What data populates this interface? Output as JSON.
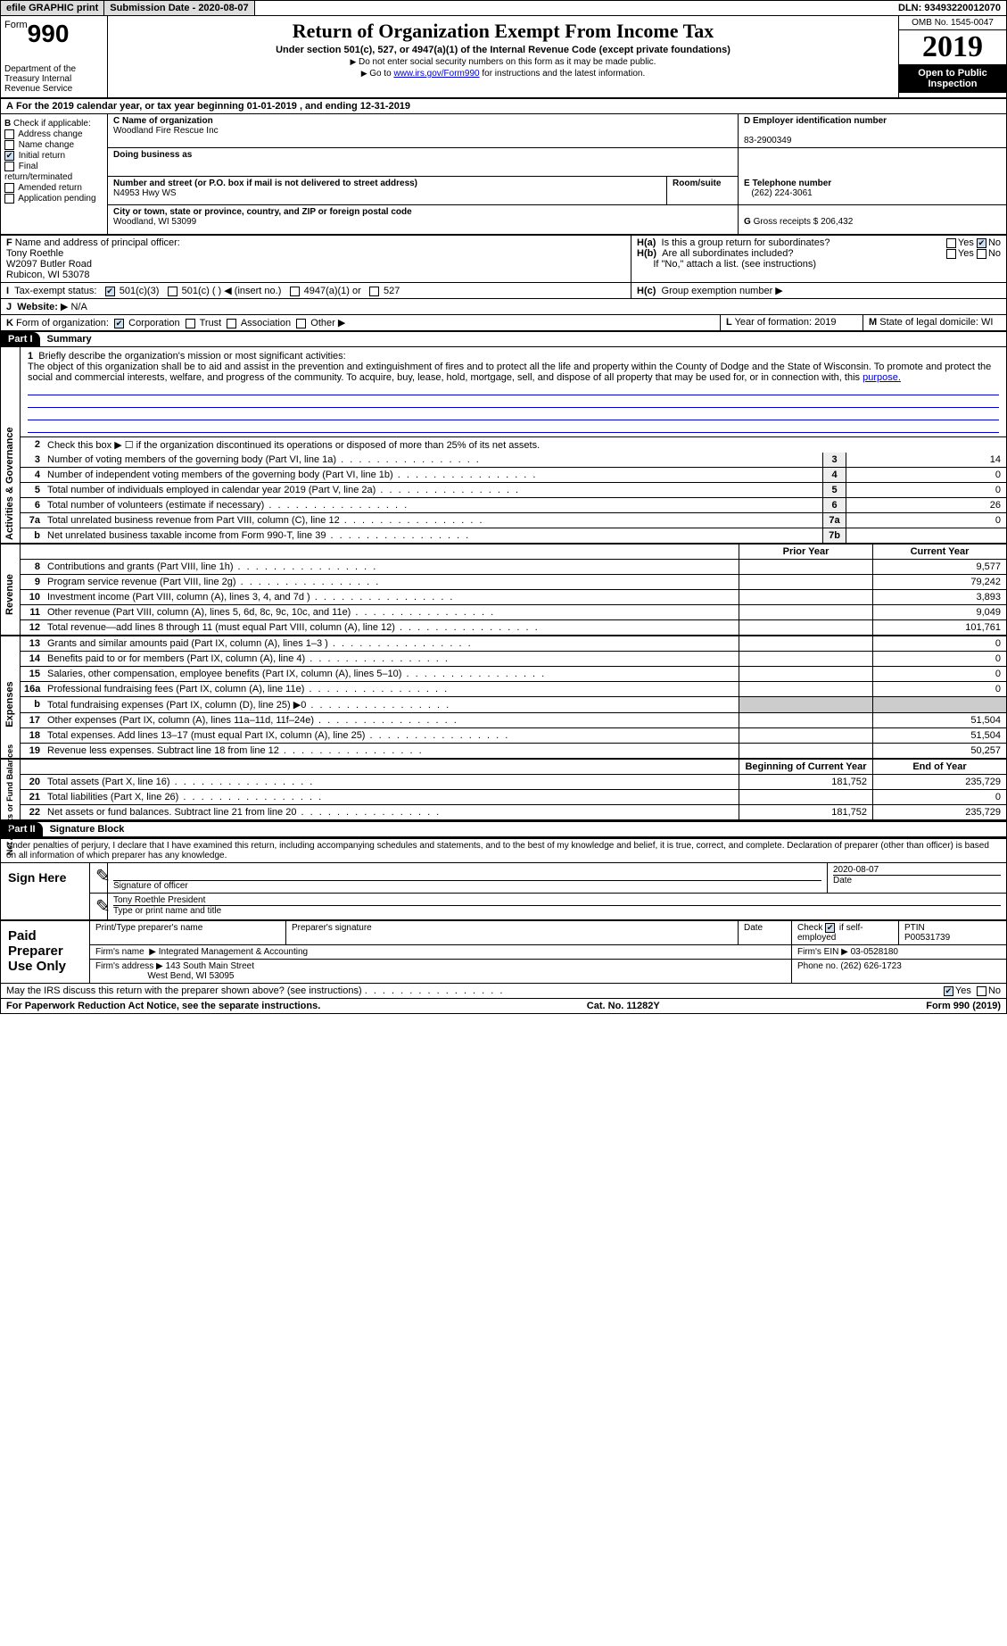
{
  "topbar": {
    "efile": "efile GRAPHIC print",
    "submission": "Submission Date - 2020-08-07",
    "dln": "DLN: 93493220012070"
  },
  "header": {
    "form_word": "Form",
    "form_num": "990",
    "dept": "Department of the Treasury\nInternal Revenue Service",
    "title": "Return of Organization Exempt From Income Tax",
    "sub": "Under section 501(c), 527, or 4947(a)(1) of the Internal Revenue Code (except private foundations)",
    "note1": "Do not enter social security numbers on this form as it may be made public.",
    "note2_pre": "Go to ",
    "note2_link": "www.irs.gov/Form990",
    "note2_post": " for instructions and the latest information.",
    "omb": "OMB No. 1545-0047",
    "year": "2019",
    "inspect": "Open to Public Inspection"
  },
  "A": "For the 2019 calendar year, or tax year beginning 01-01-2019    , and ending 12-31-2019",
  "B": {
    "label": "Check if applicable:",
    "opts": [
      "Address change",
      "Name change",
      "Initial return",
      "Final return/terminated",
      "Amended return",
      "Application pending"
    ],
    "checked_idx": 2
  },
  "C": {
    "name_label": "Name of organization",
    "name": "Woodland Fire Rescue Inc",
    "dba_label": "Doing business as",
    "dba": "",
    "street_label": "Number and street (or P.O. box if mail is not delivered to street address)",
    "street": "N4953 Hwy WS",
    "room_label": "Room/suite",
    "city_label": "City or town, state or province, country, and ZIP or foreign postal code",
    "city": "Woodland, WI  53099"
  },
  "D": {
    "label": "Employer identification number",
    "val": "83-2900349"
  },
  "E": {
    "label": "Telephone number",
    "val": "(262) 224-3061"
  },
  "G": {
    "label": "Gross receipts $",
    "val": "206,432"
  },
  "F": {
    "label": "Name and address of principal officer:",
    "name": "Tony Roethle",
    "addr1": "W2097 Butler Road",
    "addr2": "Rubicon, WI  53078"
  },
  "H": {
    "a": "Is this a group return for subordinates?",
    "b": "Are all subordinates included?",
    "b_note": "If \"No,\" attach a list. (see instructions)",
    "c": "Group exemption number"
  },
  "I": {
    "label": "Tax-exempt status:",
    "opts": [
      "501(c)(3)",
      "501(c) (   ) ◀ (insert no.)",
      "4947(a)(1) or",
      "527"
    ]
  },
  "J": {
    "label": "Website:",
    "val": "N/A"
  },
  "K": {
    "label": "Form of organization:",
    "opts": [
      "Corporation",
      "Trust",
      "Association",
      "Other"
    ]
  },
  "L": {
    "label": "Year of formation:",
    "val": "2019"
  },
  "M": {
    "label": "State of legal domicile:",
    "val": "WI"
  },
  "part1": {
    "head": "Part I",
    "title": "Summary",
    "l1_label": "Briefly describe the organization's mission or most significant activities:",
    "l1_text": "The object of this organization shall be to aid and assist in the prevention and extinguishment of fires and to protect all the life and property within the County of Dodge and the State of Wisconsin. To promote and protect the social and commercial interests, welfare, and progress of the community. To acquire, buy, lease, hold, mortgage, sell, and dispose of all property that may be used for, or in connection with, this ",
    "l1_purpose": "purpose.",
    "l2": "Check this box ▶ ☐  if the organization discontinued its operations or disposed of more than 25% of its net assets.",
    "rows_ag": [
      {
        "n": "3",
        "t": "Number of voting members of the governing body (Part VI, line 1a)",
        "b": "3",
        "v": "14"
      },
      {
        "n": "4",
        "t": "Number of independent voting members of the governing body (Part VI, line 1b)",
        "b": "4",
        "v": "0"
      },
      {
        "n": "5",
        "t": "Total number of individuals employed in calendar year 2019 (Part V, line 2a)",
        "b": "5",
        "v": "0"
      },
      {
        "n": "6",
        "t": "Total number of volunteers (estimate if necessary)",
        "b": "6",
        "v": "26"
      },
      {
        "n": "7a",
        "t": "Total unrelated business revenue from Part VIII, column (C), line 12",
        "b": "7a",
        "v": "0"
      },
      {
        "n": "b",
        "t": "Net unrelated business taxable income from Form 990-T, line 39",
        "b": "7b",
        "v": ""
      }
    ],
    "col_prior": "Prior Year",
    "col_curr": "Current Year",
    "rows_rev": [
      {
        "n": "8",
        "t": "Contributions and grants (Part VIII, line 1h)",
        "p": "",
        "c": "9,577"
      },
      {
        "n": "9",
        "t": "Program service revenue (Part VIII, line 2g)",
        "p": "",
        "c": "79,242"
      },
      {
        "n": "10",
        "t": "Investment income (Part VIII, column (A), lines 3, 4, and 7d )",
        "p": "",
        "c": "3,893"
      },
      {
        "n": "11",
        "t": "Other revenue (Part VIII, column (A), lines 5, 6d, 8c, 9c, 10c, and 11e)",
        "p": "",
        "c": "9,049"
      },
      {
        "n": "12",
        "t": "Total revenue—add lines 8 through 11 (must equal Part VIII, column (A), line 12)",
        "p": "",
        "c": "101,761"
      }
    ],
    "rows_exp": [
      {
        "n": "13",
        "t": "Grants and similar amounts paid (Part IX, column (A), lines 1–3 )",
        "p": "",
        "c": "0"
      },
      {
        "n": "14",
        "t": "Benefits paid to or for members (Part IX, column (A), line 4)",
        "p": "",
        "c": "0"
      },
      {
        "n": "15",
        "t": "Salaries, other compensation, employee benefits (Part IX, column (A), lines 5–10)",
        "p": "",
        "c": "0"
      },
      {
        "n": "16a",
        "t": "Professional fundraising fees (Part IX, column (A), line 11e)",
        "p": "",
        "c": "0"
      },
      {
        "n": "b",
        "t": "Total fundraising expenses (Part IX, column (D), line 25) ▶0",
        "p": "shade",
        "c": "shade"
      },
      {
        "n": "17",
        "t": "Other expenses (Part IX, column (A), lines 11a–11d, 11f–24e)",
        "p": "",
        "c": "51,504"
      },
      {
        "n": "18",
        "t": "Total expenses. Add lines 13–17 (must equal Part IX, column (A), line 25)",
        "p": "",
        "c": "51,504"
      },
      {
        "n": "19",
        "t": "Revenue less expenses. Subtract line 18 from line 12",
        "p": "",
        "c": "50,257"
      }
    ],
    "col_beg": "Beginning of Current Year",
    "col_end": "End of Year",
    "rows_net": [
      {
        "n": "20",
        "t": "Total assets (Part X, line 16)",
        "p": "181,752",
        "c": "235,729"
      },
      {
        "n": "21",
        "t": "Total liabilities (Part X, line 26)",
        "p": "",
        "c": "0"
      },
      {
        "n": "22",
        "t": "Net assets or fund balances. Subtract line 21 from line 20",
        "p": "181,752",
        "c": "235,729"
      }
    ],
    "vtabs": [
      "Activities & Governance",
      "Revenue",
      "Expenses",
      "Net Assets or Fund Balances"
    ]
  },
  "part2": {
    "head": "Part II",
    "title": "Signature Block",
    "decl": "Under penalties of perjury, I declare that I have examined this return, including accompanying schedules and statements, and to the best of my knowledge and belief, it is true, correct, and complete. Declaration of preparer (other than officer) is based on all information of which preparer has any knowledge.",
    "sign_here": "Sign Here",
    "sig_of_officer": "Signature of officer",
    "sig_date": "2020-08-07",
    "name_title": "Tony Roethle President",
    "name_title_label": "Type or print name and title",
    "date_label": "Date",
    "paid": "Paid Preparer Use Only",
    "prep_name_label": "Print/Type preparer's name",
    "prep_sig_label": "Preparer's signature",
    "check_if": "Check",
    "self_emp": "if self-employed",
    "ptin_label": "PTIN",
    "ptin": "P00531739",
    "firm_name_label": "Firm's name",
    "firm_name": "Integrated Management & Accounting",
    "firm_ein_label": "Firm's EIN",
    "firm_ein": "03-0528180",
    "firm_addr_label": "Firm's address",
    "firm_addr1": "143 South Main Street",
    "firm_addr2": "West Bend, WI  53095",
    "phone_label": "Phone no.",
    "phone": "(262) 626-1723",
    "may_irs": "May the IRS discuss this return with the preparer shown above? (see instructions)"
  },
  "footer": {
    "pra": "For Paperwork Reduction Act Notice, see the separate instructions.",
    "cat": "Cat. No. 11282Y",
    "form": "Form 990 (2019)"
  }
}
